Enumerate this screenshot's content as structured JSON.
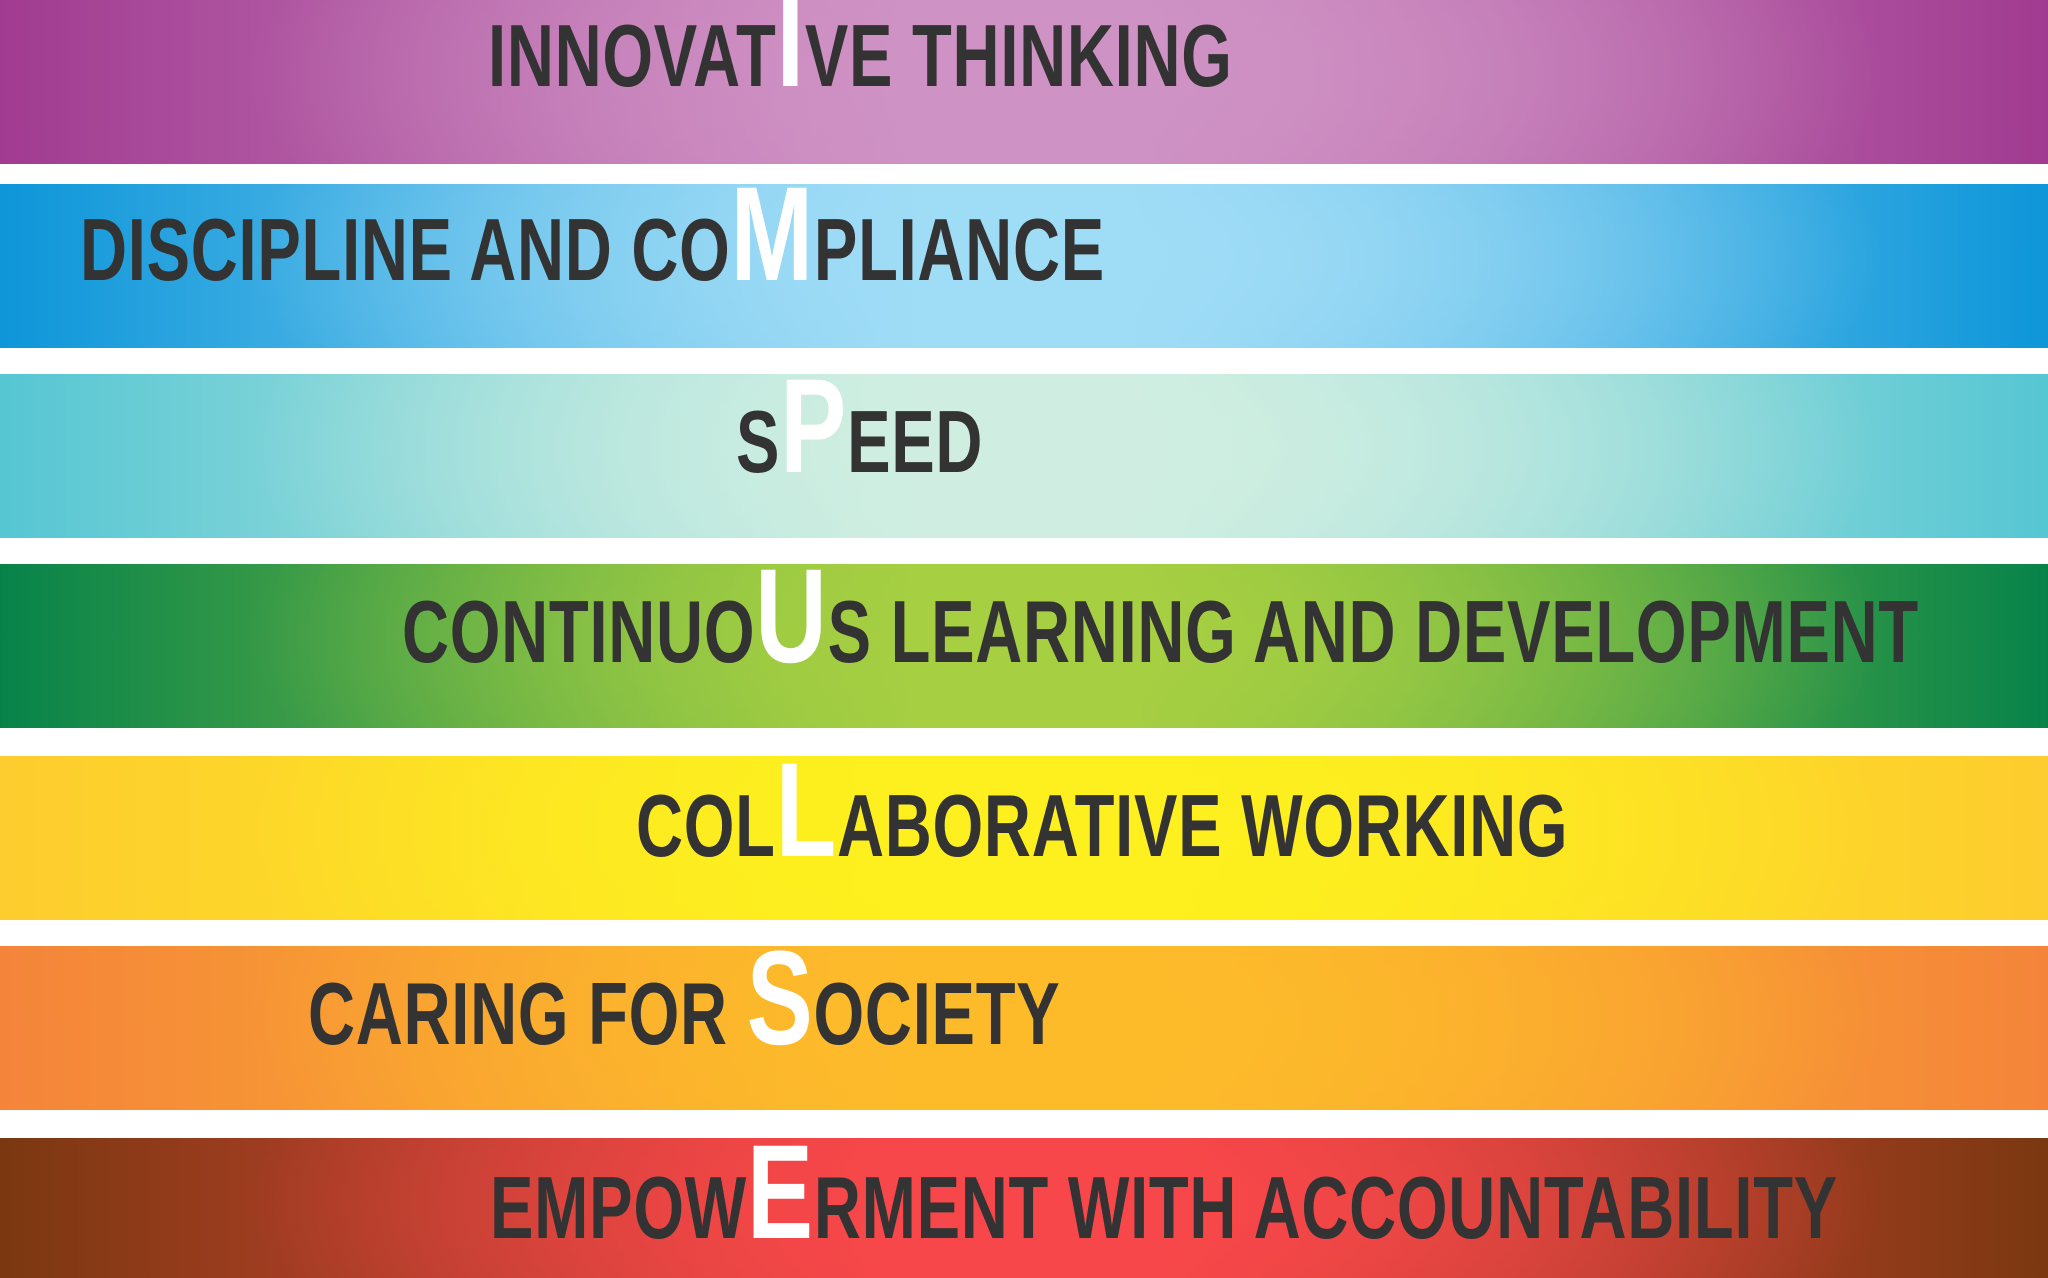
{
  "bands": [
    {
      "pre": "INNOVAT",
      "letter": "I",
      "post": "VE THINKING",
      "colors": {
        "edge": "#a13b91",
        "center": "#cf92c4"
      }
    },
    {
      "pre": "DISCIPLINE AND CO",
      "letter": "M",
      "post": "PLIANCE",
      "colors": {
        "edge": "#0d96d9",
        "center": "#9fdcf6"
      }
    },
    {
      "pre": "S",
      "letter": "P",
      "post": "EED",
      "colors": {
        "edge": "#56c6d3",
        "center": "#cfeee1"
      }
    },
    {
      "pre": "CONTINUO",
      "letter": "U",
      "post": "S LEARNING AND DEVELOPMENT",
      "colors": {
        "edge": "#07834a",
        "center": "#a6cf42"
      }
    },
    {
      "pre": "COL",
      "letter": "L",
      "post": "ABORATIVE WORKING",
      "colors": {
        "edge": "#fdcc2e",
        "center": "#fdf01e"
      }
    },
    {
      "pre": "CARING FOR ",
      "letter": "S",
      "post": "OCIETY",
      "colors": {
        "edge": "#f4843a",
        "center": "#fdbb2a"
      }
    },
    {
      "pre": "EMPOW",
      "letter": "E",
      "post": "RMENT WITH ACCOUNTABILITY",
      "colors": {
        "edge": "#7a3810",
        "center": "#f8474a"
      }
    }
  ]
}
